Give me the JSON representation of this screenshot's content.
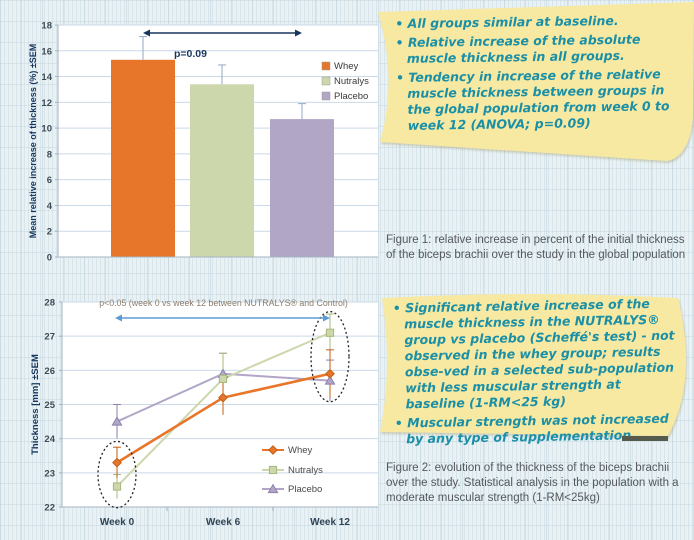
{
  "figure1": {
    "caption": "Figure 1: relative increase in percent of the initial thickness of the biceps brachii over the study in the global population",
    "note": {
      "bullets": [
        "All groups similar at baseline.",
        "Relative increase of the absolute muscle thickness in all groups.",
        "Tendency in increase of the relative muscle thickness between groups in the global population from week 0 to week 12 (ANOVA; p=0.09)"
      ]
    }
  },
  "figure2": {
    "caption": "Figure 2: evolution of the thickness of the biceps brachii over the study. Statistical analysis in the population with a moderate muscular strength (1-RM<25kg)",
    "note": {
      "bullets": [
        "Significant relative increase of the muscle thickness in the NUTRALYS® group vs placebo (Scheffé's test) - not observed in the whey group; results obse-ved in a selected sub-population with less muscular strength at baseline (1-RM<25 kg)",
        "Muscular strength was not increased by any type of supplementation"
      ]
    }
  },
  "colors": {
    "whey": "#e8762a",
    "whey_edge": "#c05f15",
    "nutralys": "#ccd7ab",
    "nutralys_edge": "#a8b77e",
    "placebo": "#b1a6c6",
    "placebo_edge": "#8e81ac",
    "note_bg": "#f7e9a2",
    "note_text": "#1b8fa6",
    "navy": "#17365d",
    "blue_arrow": "#5b9bd5",
    "annotation_brown": "#8d7d6b",
    "grid_line": "#ccd9e8",
    "axis_line": "#a3b4c0",
    "error_bar_blue": "#93a9c7"
  },
  "chart_data": [
    {
      "id": "figure1-bar",
      "type": "bar",
      "title": "",
      "xlabel": "",
      "ylabel": "Mean relative increase of thickness (%) ±SEM",
      "ylim": [
        0,
        18
      ],
      "ytick_step": 2,
      "grid": true,
      "categories": [
        "Whey",
        "Nutralys",
        "Placebo"
      ],
      "values": [
        15.3,
        13.4,
        10.7
      ],
      "errors_up": [
        1.8,
        1.5,
        1.2
      ],
      "bar_colors": [
        "#e8762a",
        "#ccd7ab",
        "#b1a6c6"
      ],
      "legend": [
        "Whey",
        "Nutralys",
        "Placebo"
      ],
      "legend_position": "inside-right",
      "significance": {
        "label": "p=0.09",
        "span": [
          "Whey",
          "Placebo"
        ]
      }
    },
    {
      "id": "figure2-line",
      "type": "line",
      "title": "",
      "xlabel": "",
      "ylabel": "Thickness [mm] ±SEM",
      "ylim": [
        22,
        28
      ],
      "ytick_step": 1,
      "grid": true,
      "x": [
        "Week 0",
        "Week 6",
        "Week 12"
      ],
      "series": [
        {
          "name": "Whey",
          "color": "#e8762a",
          "edge": "#c05f15",
          "marker": "diamond",
          "values": [
            23.3,
            25.2,
            25.9
          ],
          "errors": [
            0.45,
            0.5,
            0.7
          ]
        },
        {
          "name": "Nutralys",
          "color": "#ccd7ab",
          "edge": "#a8b77e",
          "marker": "square",
          "values": [
            22.6,
            25.75,
            27.1
          ],
          "errors": [
            0.35,
            0.75,
            0.55
          ]
        },
        {
          "name": "Placebo",
          "color": "#b1a6c6",
          "edge": "#8e81ac",
          "marker": "triangle",
          "values": [
            24.5,
            25.9,
            25.7
          ],
          "errors": [
            0.5,
            0.6,
            0.6
          ]
        }
      ],
      "legend_position": "inside-bottom-right",
      "significance": {
        "label": "p<0.05 (week 0 vs week 12 between NUTRALYS® and Control)",
        "span": [
          "Week 0",
          "Week 12"
        ]
      },
      "circled_groups": [
        {
          "x": "Week 0",
          "series": [
            "Whey",
            "Nutralys"
          ]
        },
        {
          "x": "Week 12",
          "series": [
            "Whey",
            "Nutralys",
            "Placebo"
          ]
        }
      ]
    }
  ]
}
